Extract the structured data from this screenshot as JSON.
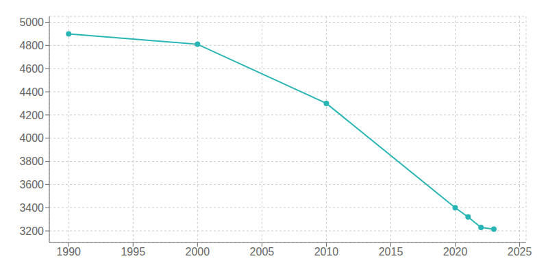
{
  "chart_data": {
    "type": "line",
    "x": [
      1990,
      2000,
      2010,
      2020,
      2021,
      2022,
      2023
    ],
    "values": [
      4900,
      4810,
      4300,
      3400,
      3320,
      3230,
      3215
    ],
    "color": "#2AB5B5",
    "marker": "circle",
    "xlim": [
      1988.5,
      2025.5
    ],
    "ylim": [
      3100,
      5050
    ],
    "xticks": [
      1990,
      1995,
      2000,
      2005,
      2010,
      2015,
      2020,
      2025
    ],
    "yticks": [
      3200,
      3400,
      3600,
      3800,
      4000,
      4200,
      4400,
      4600,
      4800,
      5000
    ],
    "grid": true
  }
}
